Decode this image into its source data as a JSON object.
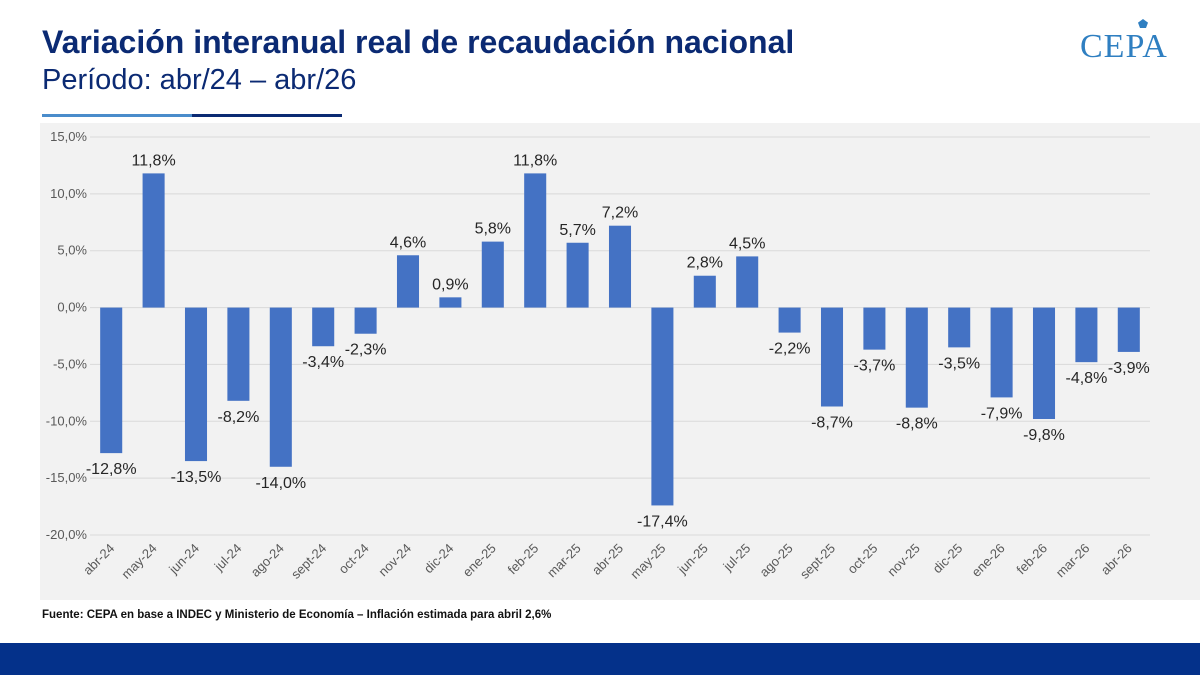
{
  "header": {
    "title": "Variación interanual real de recaudación nacional",
    "subtitle": "Período: abr/24 – abr/26",
    "logo_text": "CEPA"
  },
  "source_note": "Fuente: CEPA en base a INDEC  y Ministerio de Economía – Inflación estimada para abril 2,6%",
  "colors": {
    "bar": "#4472c4",
    "title": "#0b2a73",
    "footer": "#04318a",
    "plot_background": "#f2f2f2"
  },
  "chart_data": {
    "type": "bar",
    "categories": [
      "abr-24",
      "may-24",
      "jun-24",
      "jul-24",
      "ago-24",
      "sept-24",
      "oct-24",
      "nov-24",
      "dic-24",
      "ene-25",
      "feb-25",
      "mar-25",
      "abr-25",
      "may-25",
      "jun-25",
      "jul-25",
      "ago-25",
      "sept-25",
      "oct-25",
      "nov-25",
      "dic-25",
      "ene-26",
      "feb-26",
      "mar-26",
      "abr-26"
    ],
    "values": [
      -12.8,
      11.8,
      -13.5,
      -8.2,
      -14.0,
      -3.4,
      -2.3,
      4.6,
      0.9,
      5.8,
      11.8,
      5.7,
      7.2,
      -17.4,
      2.8,
      4.5,
      -2.2,
      -8.7,
      -3.7,
      -8.8,
      -3.5,
      -7.9,
      -9.8,
      -4.8,
      -3.9
    ],
    "data_labels": [
      "-12,8%",
      "11,8%",
      "-13,5%",
      "-8,2%",
      "-14,0%",
      "-3,4%",
      "-2,3%",
      "4,6%",
      "0,9%",
      "5,8%",
      "11,8%",
      "5,7%",
      "7,2%",
      "-17,4%",
      "2,8%",
      "4,5%",
      "-2,2%",
      "-8,7%",
      "-3,7%",
      "-8,8%",
      "-3,5%",
      "-7,9%",
      "-9,8%",
      "-4,8%",
      "-3,9%"
    ],
    "yticks": [
      15,
      10,
      5,
      0,
      -5,
      -10,
      -15,
      -20
    ],
    "ytick_labels": [
      "15,0%",
      "10,0%",
      "5,0%",
      "0,0%",
      "-5,0%",
      "-10,0%",
      "-15,0%",
      "-20,0%"
    ],
    "ylim": [
      -20,
      15
    ],
    "grid": true,
    "legend": "none"
  }
}
